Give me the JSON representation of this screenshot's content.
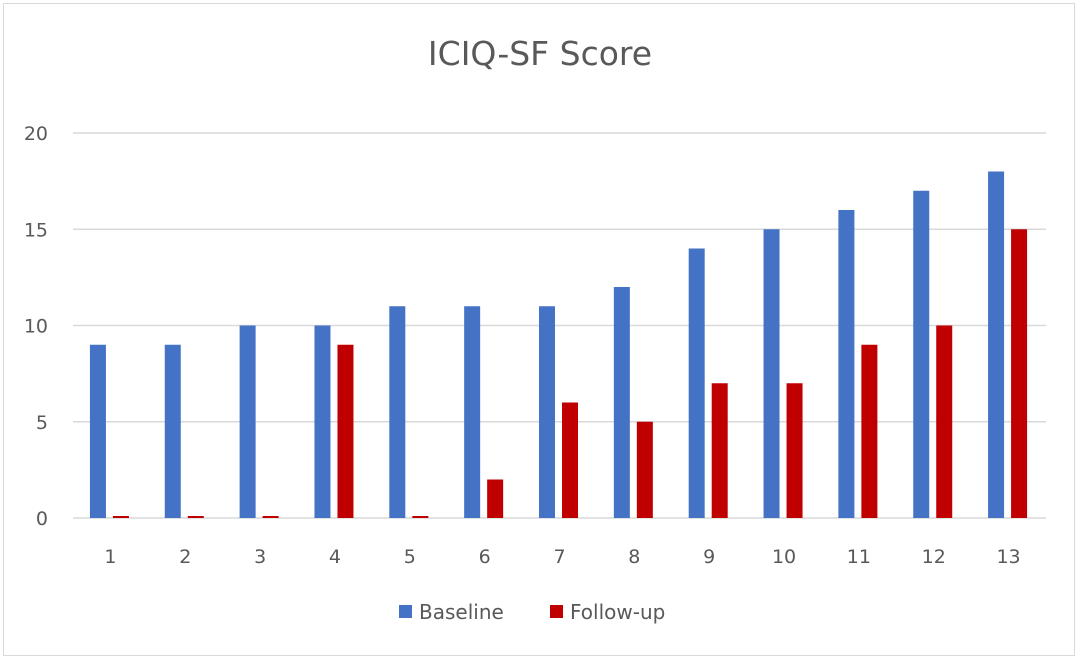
{
  "chart_data": {
    "type": "bar",
    "title": "ICIQ-SF Score",
    "xlabel": "",
    "ylabel": "",
    "categories": [
      "1",
      "2",
      "3",
      "4",
      "5",
      "6",
      "7",
      "8",
      "9",
      "10",
      "11",
      "12",
      "13"
    ],
    "series": [
      {
        "name": "Baseline",
        "color": "#4472c4",
        "values": [
          9,
          9,
          10,
          10,
          11,
          11,
          11,
          12,
          14,
          15,
          16,
          17,
          18
        ]
      },
      {
        "name": "Follow-up",
        "color": "#c00000",
        "values": [
          0,
          0,
          0,
          9,
          0,
          2,
          6,
          5,
          7,
          7,
          9,
          10,
          15
        ]
      }
    ],
    "ylim": [
      0,
      20
    ],
    "yticks": [
      "0",
      "5",
      "10",
      "15",
      "20"
    ],
    "ytick_values": [
      0,
      5,
      10,
      15,
      20
    ],
    "grid": true,
    "gridline_color": "#d9d9d9",
    "legend_position": "bottom"
  }
}
